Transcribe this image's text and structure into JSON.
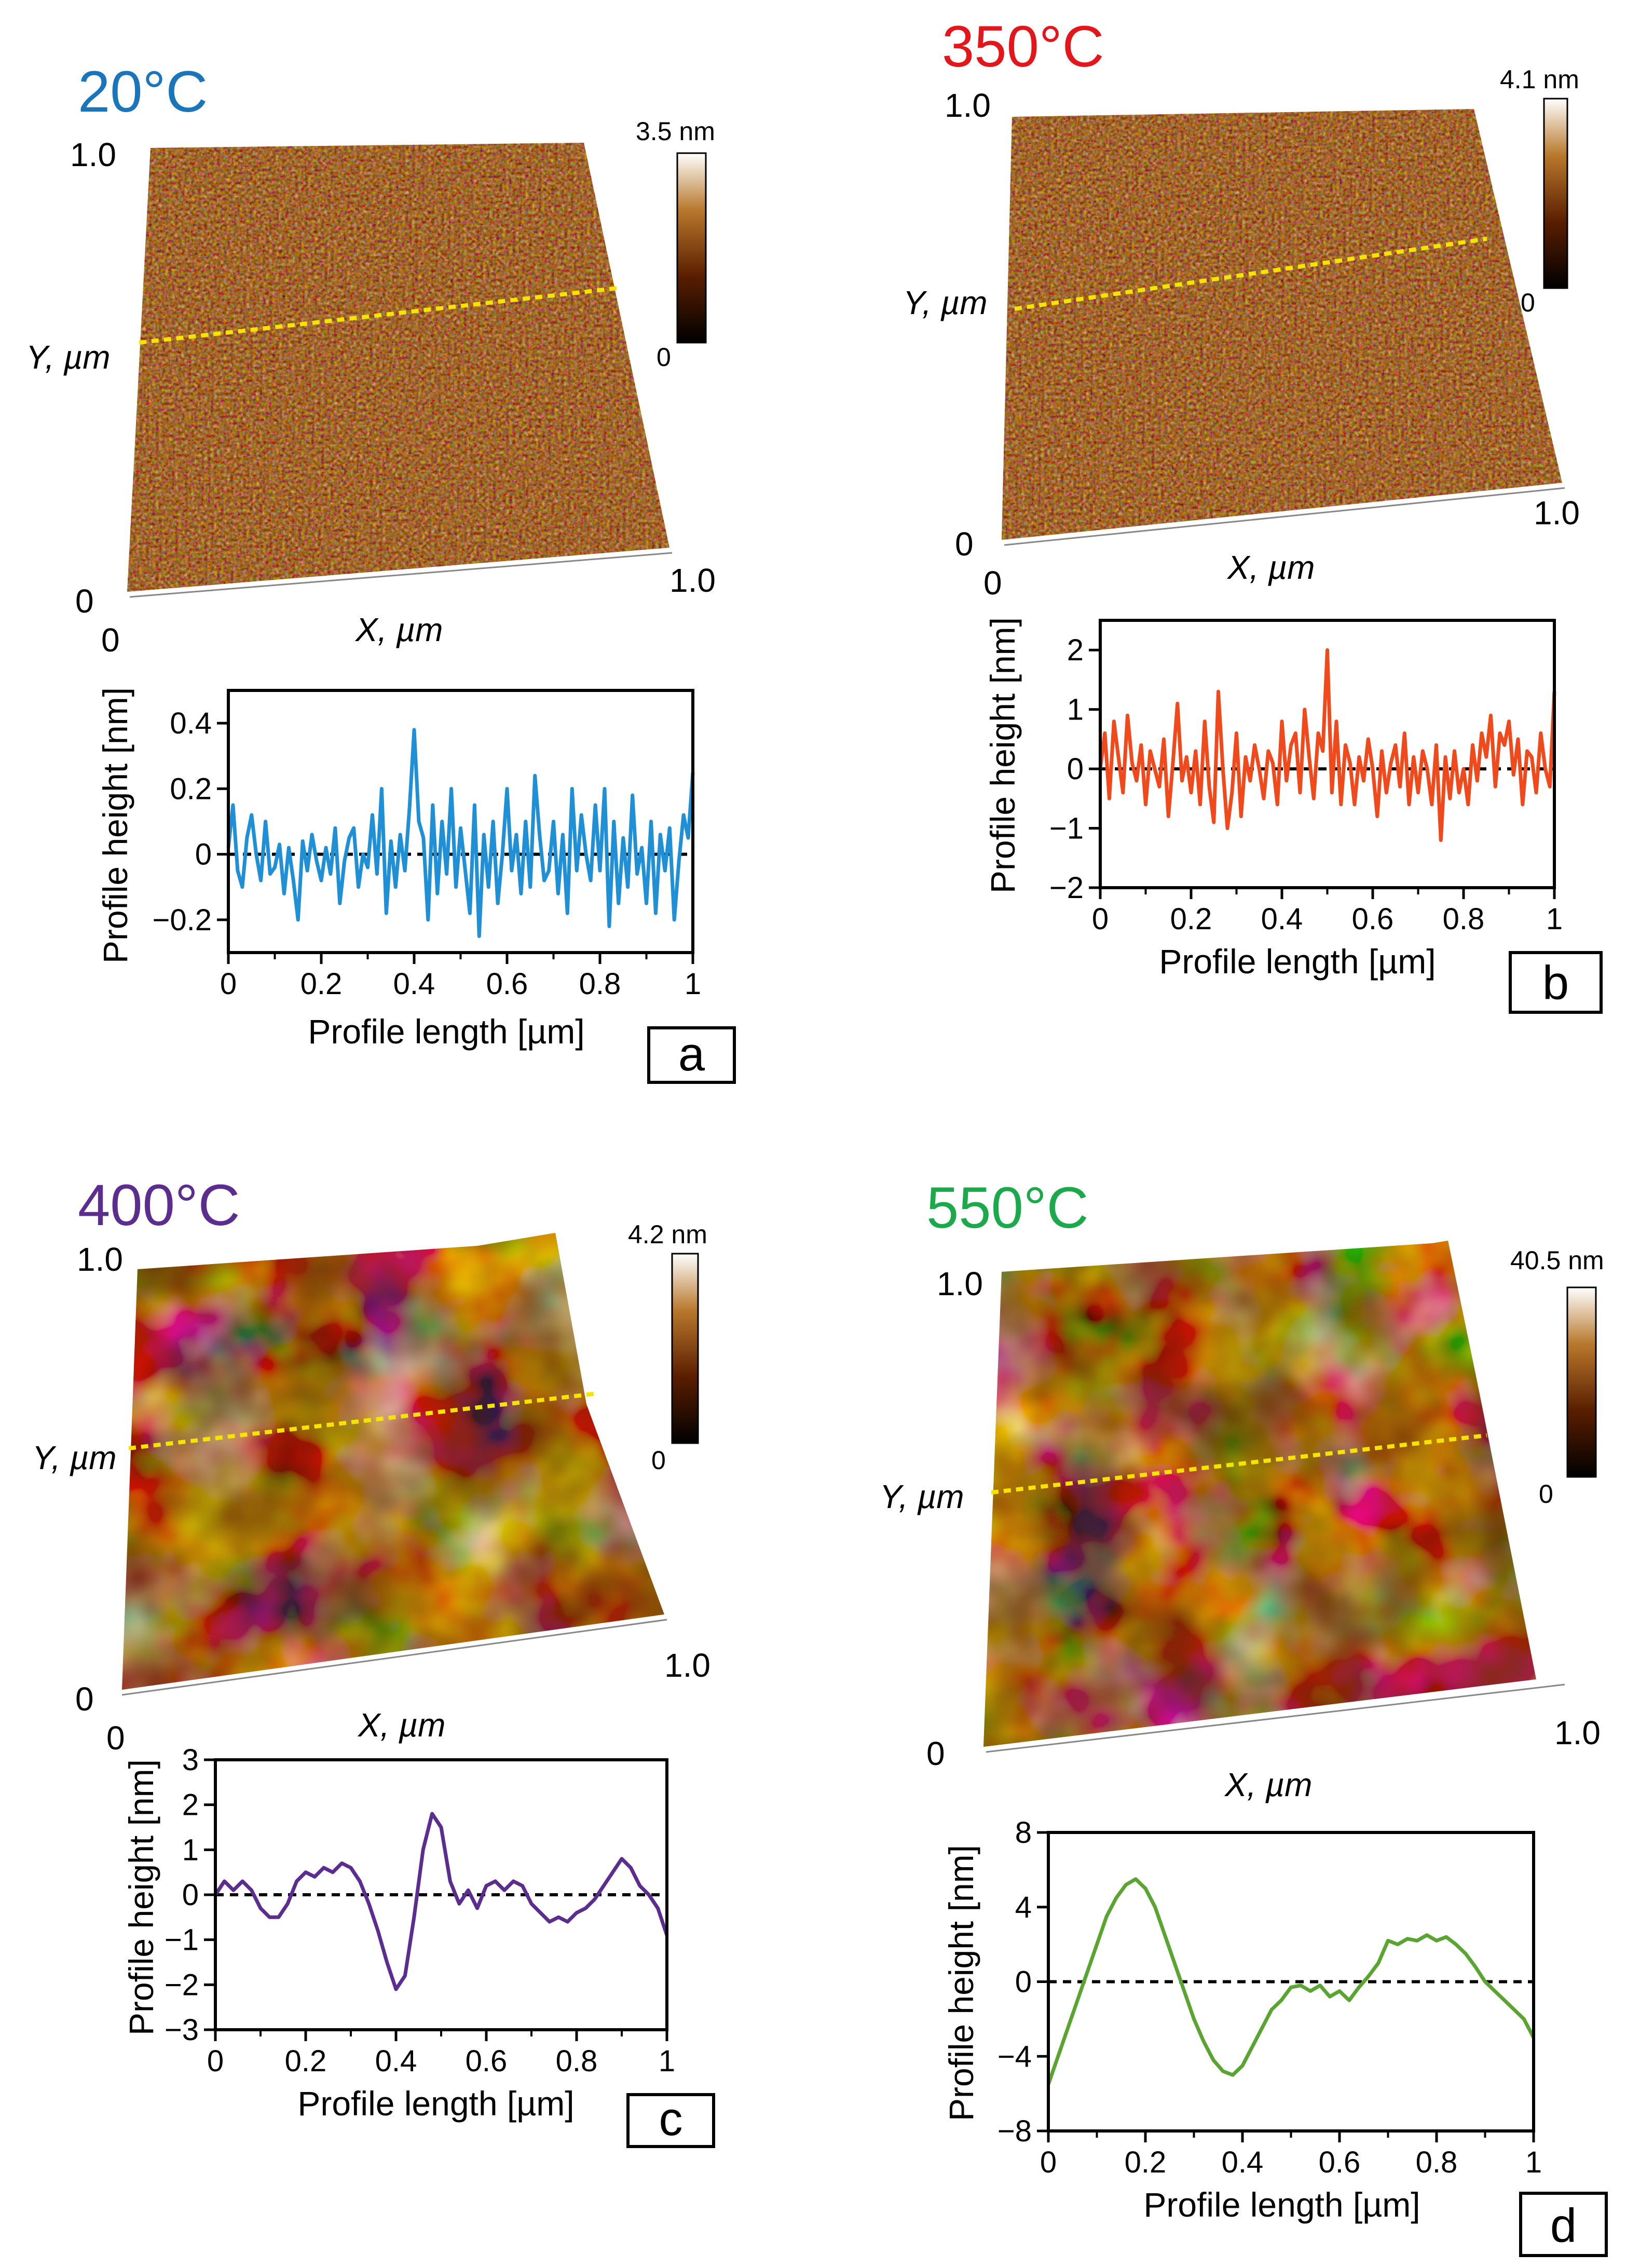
{
  "figure": {
    "common": {
      "x_axis_label": "X, µm",
      "y_axis_label": "Y, µm",
      "axis_min_label": "0",
      "axis_max_label": "1.0",
      "colorbar_min_label": "0",
      "profile_xlabel": "Profile length [µm]",
      "profile_ylabel": "Profile height [nm]",
      "scan_line_color": "#f5e400"
    },
    "panels": [
      {
        "letter": "a",
        "temperature": "20°C",
        "temp_color": "#1b75bb",
        "colorbar_max": "3.5 nm",
        "surface": "fine"
      },
      {
        "letter": "b",
        "temperature": "350°C",
        "temp_color": "#e3161c",
        "colorbar_max": "4.1 nm",
        "surface": "fine"
      },
      {
        "letter": "c",
        "temperature": "400°C",
        "temp_color": "#5b2d8e",
        "colorbar_max": "4.2 nm",
        "surface": "blotchy"
      },
      {
        "letter": "d",
        "temperature": "550°C",
        "temp_color": "#1ba94c",
        "colorbar_max": "40.5 nm",
        "surface": "blotchy"
      }
    ]
  },
  "chart_data": [
    {
      "type": "line",
      "panel": "a",
      "xlabel": "Profile length [µm]",
      "ylabel": "Profile height [nm]",
      "xlim": [
        0,
        1
      ],
      "ylim": [
        -0.3,
        0.5
      ],
      "xticks": [
        "0",
        "0.2",
        "0.4",
        "0.6",
        "0.8",
        "1"
      ],
      "yticks": [
        "−0.2",
        "0",
        "0.2",
        "0.4"
      ],
      "ytick_values": [
        -0.2,
        0,
        0.2,
        0.4
      ],
      "series": [
        {
          "name": "20°C",
          "color": "#1f8fd6",
          "x": [
            0,
            0.01,
            0.02,
            0.03,
            0.04,
            0.05,
            0.06,
            0.07,
            0.08,
            0.09,
            0.1,
            0.11,
            0.12,
            0.13,
            0.14,
            0.15,
            0.16,
            0.17,
            0.18,
            0.19,
            0.2,
            0.21,
            0.22,
            0.23,
            0.24,
            0.25,
            0.26,
            0.27,
            0.28,
            0.29,
            0.3,
            0.31,
            0.32,
            0.33,
            0.34,
            0.35,
            0.36,
            0.37,
            0.38,
            0.39,
            0.4,
            0.41,
            0.42,
            0.43,
            0.44,
            0.45,
            0.46,
            0.47,
            0.48,
            0.49,
            0.5,
            0.51,
            0.52,
            0.53,
            0.54,
            0.55,
            0.56,
            0.57,
            0.58,
            0.59,
            0.6,
            0.61,
            0.62,
            0.63,
            0.64,
            0.65,
            0.66,
            0.67,
            0.68,
            0.69,
            0.7,
            0.71,
            0.72,
            0.73,
            0.74,
            0.75,
            0.76,
            0.77,
            0.78,
            0.79,
            0.8,
            0.81,
            0.82,
            0.83,
            0.84,
            0.85,
            0.86,
            0.87,
            0.88,
            0.89,
            0.9,
            0.91,
            0.92,
            0.93,
            0.94,
            0.95,
            0.96,
            0.97,
            0.98,
            0.99,
            1.0
          ],
          "y": [
            0.02,
            0.15,
            -0.05,
            -0.1,
            0.05,
            0.12,
            0.0,
            -0.08,
            0.1,
            -0.06,
            -0.04,
            0.03,
            -0.12,
            0.02,
            -0.08,
            -0.2,
            0.04,
            -0.05,
            0.06,
            -0.02,
            -0.08,
            0.02,
            -0.06,
            0.08,
            -0.15,
            -0.02,
            0.05,
            0.08,
            -0.1,
            0.0,
            -0.04,
            0.12,
            -0.06,
            0.2,
            -0.18,
            0.04,
            -0.1,
            0.06,
            -0.05,
            0.14,
            0.38,
            0.1,
            0.05,
            -0.2,
            0.15,
            -0.12,
            0.1,
            -0.06,
            0.2,
            -0.1,
            0.08,
            -0.05,
            -0.18,
            0.15,
            -0.25,
            0.06,
            -0.1,
            0.1,
            -0.15,
            0.0,
            0.2,
            -0.05,
            0.06,
            -0.12,
            0.1,
            -0.1,
            0.24,
            0.06,
            -0.08,
            -0.05,
            0.1,
            -0.12,
            0.06,
            -0.18,
            0.2,
            -0.05,
            0.12,
            0.0,
            -0.08,
            0.15,
            -0.05,
            0.2,
            -0.22,
            0.1,
            -0.15,
            0.05,
            -0.1,
            0.18,
            -0.06,
            0.02,
            -0.15,
            0.1,
            -0.18,
            0.06,
            -0.05,
            0.08,
            -0.2,
            -0.02,
            0.12,
            0.05,
            0.25
          ]
        }
      ]
    },
    {
      "type": "line",
      "panel": "b",
      "xlabel": "Profile length [µm]",
      "ylabel": "Profile height [nm]",
      "xlim": [
        0,
        1
      ],
      "ylim": [
        -2,
        2.5
      ],
      "xticks": [
        "0",
        "0.2",
        "0.4",
        "0.6",
        "0.8",
        "1"
      ],
      "yticks": [
        "−2",
        "−1",
        "0",
        "1",
        "2"
      ],
      "ytick_values": [
        -2,
        -1,
        0,
        1,
        2
      ],
      "series": [
        {
          "name": "350°C",
          "color": "#f04a1c",
          "x": [
            0,
            0.01,
            0.02,
            0.03,
            0.04,
            0.05,
            0.06,
            0.07,
            0.08,
            0.09,
            0.1,
            0.11,
            0.12,
            0.13,
            0.14,
            0.15,
            0.16,
            0.17,
            0.18,
            0.19,
            0.2,
            0.21,
            0.22,
            0.23,
            0.24,
            0.25,
            0.26,
            0.27,
            0.28,
            0.29,
            0.3,
            0.31,
            0.32,
            0.33,
            0.34,
            0.35,
            0.36,
            0.37,
            0.38,
            0.39,
            0.4,
            0.41,
            0.42,
            0.43,
            0.44,
            0.45,
            0.46,
            0.47,
            0.48,
            0.49,
            0.5,
            0.51,
            0.52,
            0.53,
            0.54,
            0.55,
            0.56,
            0.57,
            0.58,
            0.59,
            0.6,
            0.61,
            0.62,
            0.63,
            0.64,
            0.65,
            0.66,
            0.67,
            0.68,
            0.69,
            0.7,
            0.71,
            0.72,
            0.73,
            0.74,
            0.75,
            0.76,
            0.77,
            0.78,
            0.79,
            0.8,
            0.81,
            0.82,
            0.83,
            0.84,
            0.85,
            0.86,
            0.87,
            0.88,
            0.89,
            0.9,
            0.91,
            0.92,
            0.93,
            0.94,
            0.95,
            0.96,
            0.97,
            0.98,
            0.99,
            1.0
          ],
          "y": [
            0.0,
            0.6,
            -0.5,
            0.8,
            0.2,
            -0.4,
            0.9,
            0.1,
            -0.2,
            0.4,
            -0.6,
            0.3,
            0.0,
            -0.3,
            0.5,
            -0.8,
            0.1,
            1.1,
            -0.2,
            0.2,
            -0.4,
            0.3,
            -0.6,
            0.8,
            -0.3,
            -0.9,
            1.3,
            0.0,
            -1.0,
            -0.4,
            0.6,
            -0.8,
            0.2,
            -0.2,
            0.4,
            0.0,
            -0.5,
            0.3,
            0.1,
            -0.6,
            0.8,
            -0.2,
            0.4,
            0.6,
            -0.4,
            1.0,
            0.2,
            -0.5,
            0.6,
            0.3,
            2.0,
            -0.4,
            0.8,
            -0.6,
            0.4,
            0.1,
            -0.6,
            0.2,
            -0.2,
            0.5,
            0.0,
            -0.8,
            0.3,
            -0.4,
            0.1,
            0.4,
            -0.3,
            0.6,
            -0.6,
            0.2,
            -0.4,
            0.3,
            0.0,
            -0.6,
            0.4,
            -1.2,
            0.2,
            -0.5,
            0.3,
            -0.4,
            0.0,
            -0.6,
            0.4,
            -0.2,
            0.6,
            0.2,
            0.9,
            -0.3,
            0.6,
            0.4,
            0.8,
            -0.1,
            0.5,
            -0.6,
            0.3,
            0.2,
            -0.4,
            0.6,
            0.0,
            -0.3,
            1.3
          ]
        }
      ]
    },
    {
      "type": "line",
      "panel": "c",
      "xlabel": "Profile length [µm]",
      "ylabel": "Profile height [nm]",
      "xlim": [
        0,
        1
      ],
      "ylim": [
        -3,
        3
      ],
      "xticks": [
        "0",
        "0.2",
        "0.4",
        "0.6",
        "0.8",
        "1"
      ],
      "yticks": [
        "−3",
        "−2",
        "−1",
        "0",
        "1",
        "2",
        "3"
      ],
      "ytick_values": [
        -3,
        -2,
        -1,
        0,
        1,
        2,
        3
      ],
      "series": [
        {
          "name": "400°C",
          "color": "#5b2d8e",
          "x": [
            0,
            0.02,
            0.04,
            0.06,
            0.08,
            0.1,
            0.12,
            0.14,
            0.16,
            0.18,
            0.2,
            0.22,
            0.24,
            0.26,
            0.28,
            0.3,
            0.32,
            0.34,
            0.36,
            0.38,
            0.4,
            0.42,
            0.44,
            0.46,
            0.48,
            0.5,
            0.52,
            0.54,
            0.56,
            0.58,
            0.6,
            0.62,
            0.64,
            0.66,
            0.68,
            0.7,
            0.72,
            0.74,
            0.76,
            0.78,
            0.8,
            0.82,
            0.84,
            0.86,
            0.88,
            0.9,
            0.92,
            0.94,
            0.96,
            0.98,
            1.0
          ],
          "y": [
            0.0,
            0.3,
            0.1,
            0.3,
            0.1,
            -0.3,
            -0.5,
            -0.5,
            -0.2,
            0.3,
            0.5,
            0.4,
            0.6,
            0.5,
            0.7,
            0.6,
            0.3,
            -0.2,
            -0.8,
            -1.5,
            -2.1,
            -1.8,
            -0.5,
            1.0,
            1.8,
            1.5,
            0.3,
            -0.2,
            0.1,
            -0.3,
            0.2,
            0.3,
            0.1,
            0.3,
            0.2,
            -0.2,
            -0.4,
            -0.6,
            -0.5,
            -0.6,
            -0.4,
            -0.3,
            -0.1,
            0.2,
            0.5,
            0.8,
            0.6,
            0.2,
            0.0,
            -0.3,
            -0.9
          ]
        }
      ]
    },
    {
      "type": "line",
      "panel": "d",
      "xlabel": "Profile length [µm]",
      "ylabel": "Profile height [nm]",
      "xlim": [
        0,
        1
      ],
      "ylim": [
        -8,
        8
      ],
      "xticks": [
        "0",
        "0.2",
        "0.4",
        "0.6",
        "0.8",
        "1"
      ],
      "yticks": [
        "−8",
        "−4",
        "0",
        "4",
        "8"
      ],
      "ytick_values": [
        -8,
        -4,
        0,
        4,
        8
      ],
      "series": [
        {
          "name": "550°C",
          "color": "#5aa531",
          "x": [
            0,
            0.02,
            0.04,
            0.06,
            0.08,
            0.1,
            0.12,
            0.14,
            0.16,
            0.18,
            0.2,
            0.22,
            0.24,
            0.26,
            0.28,
            0.3,
            0.32,
            0.34,
            0.36,
            0.38,
            0.4,
            0.42,
            0.44,
            0.46,
            0.48,
            0.5,
            0.52,
            0.54,
            0.56,
            0.58,
            0.6,
            0.62,
            0.64,
            0.66,
            0.68,
            0.7,
            0.72,
            0.74,
            0.76,
            0.78,
            0.8,
            0.82,
            0.84,
            0.86,
            0.88,
            0.9,
            0.92,
            0.94,
            0.96,
            0.98,
            1.0
          ],
          "y": [
            -5.5,
            -4.0,
            -2.5,
            -1.0,
            0.5,
            2.0,
            3.5,
            4.5,
            5.2,
            5.5,
            5.0,
            4.0,
            2.5,
            1.0,
            -0.5,
            -2.0,
            -3.2,
            -4.2,
            -4.8,
            -5.0,
            -4.5,
            -3.5,
            -2.5,
            -1.5,
            -1.0,
            -0.3,
            -0.2,
            -0.5,
            -0.2,
            -0.8,
            -0.5,
            -1.0,
            -0.3,
            0.3,
            1.0,
            2.2,
            2.0,
            2.3,
            2.2,
            2.5,
            2.2,
            2.4,
            2.0,
            1.5,
            0.8,
            0.0,
            -0.5,
            -1.0,
            -1.5,
            -2.0,
            -3.0
          ]
        }
      ]
    }
  ]
}
